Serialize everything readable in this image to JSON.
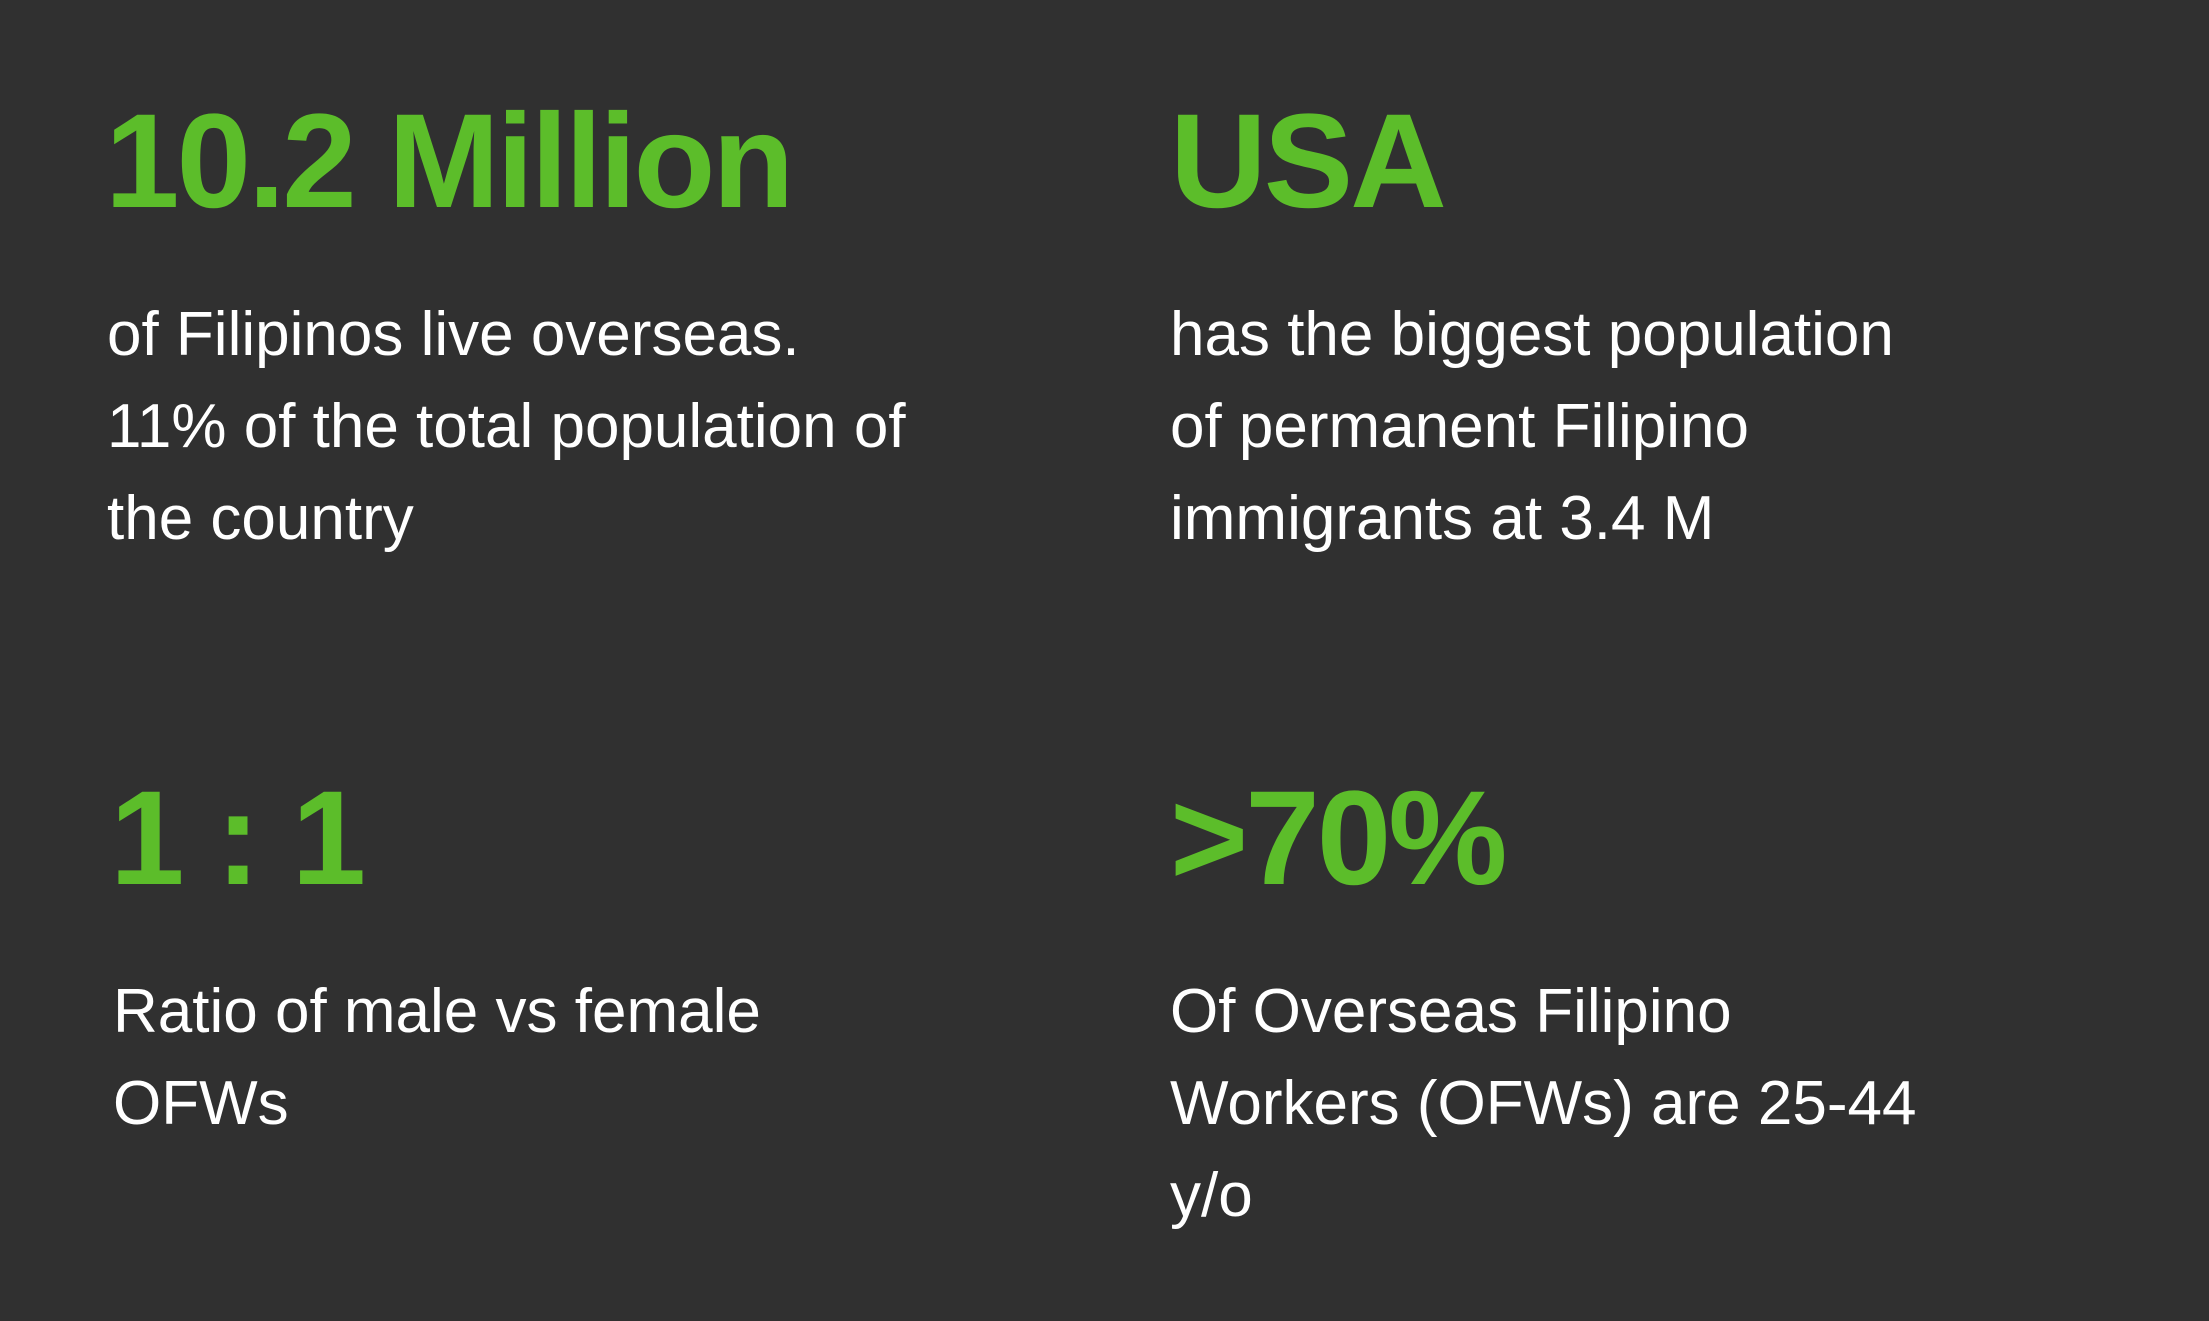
{
  "stats": [
    {
      "value": "10.2 Million",
      "description": "of  Filipinos live overseas.\n11% of the total population of\nthe country"
    },
    {
      "value": "USA",
      "description": "has the biggest population\nof permanent Filipino\nimmigrants at 3.4 M"
    },
    {
      "value": "1 : 1",
      "description": "Ratio of male vs female\nOFWs"
    },
    {
      "value": ">70%",
      "description": "Of Overseas Filipino\nWorkers (OFWs) are 25-44\ny/o"
    }
  ],
  "colors": {
    "background": "#303030",
    "accent": "#5cbd2a",
    "text": "#ffffff"
  }
}
